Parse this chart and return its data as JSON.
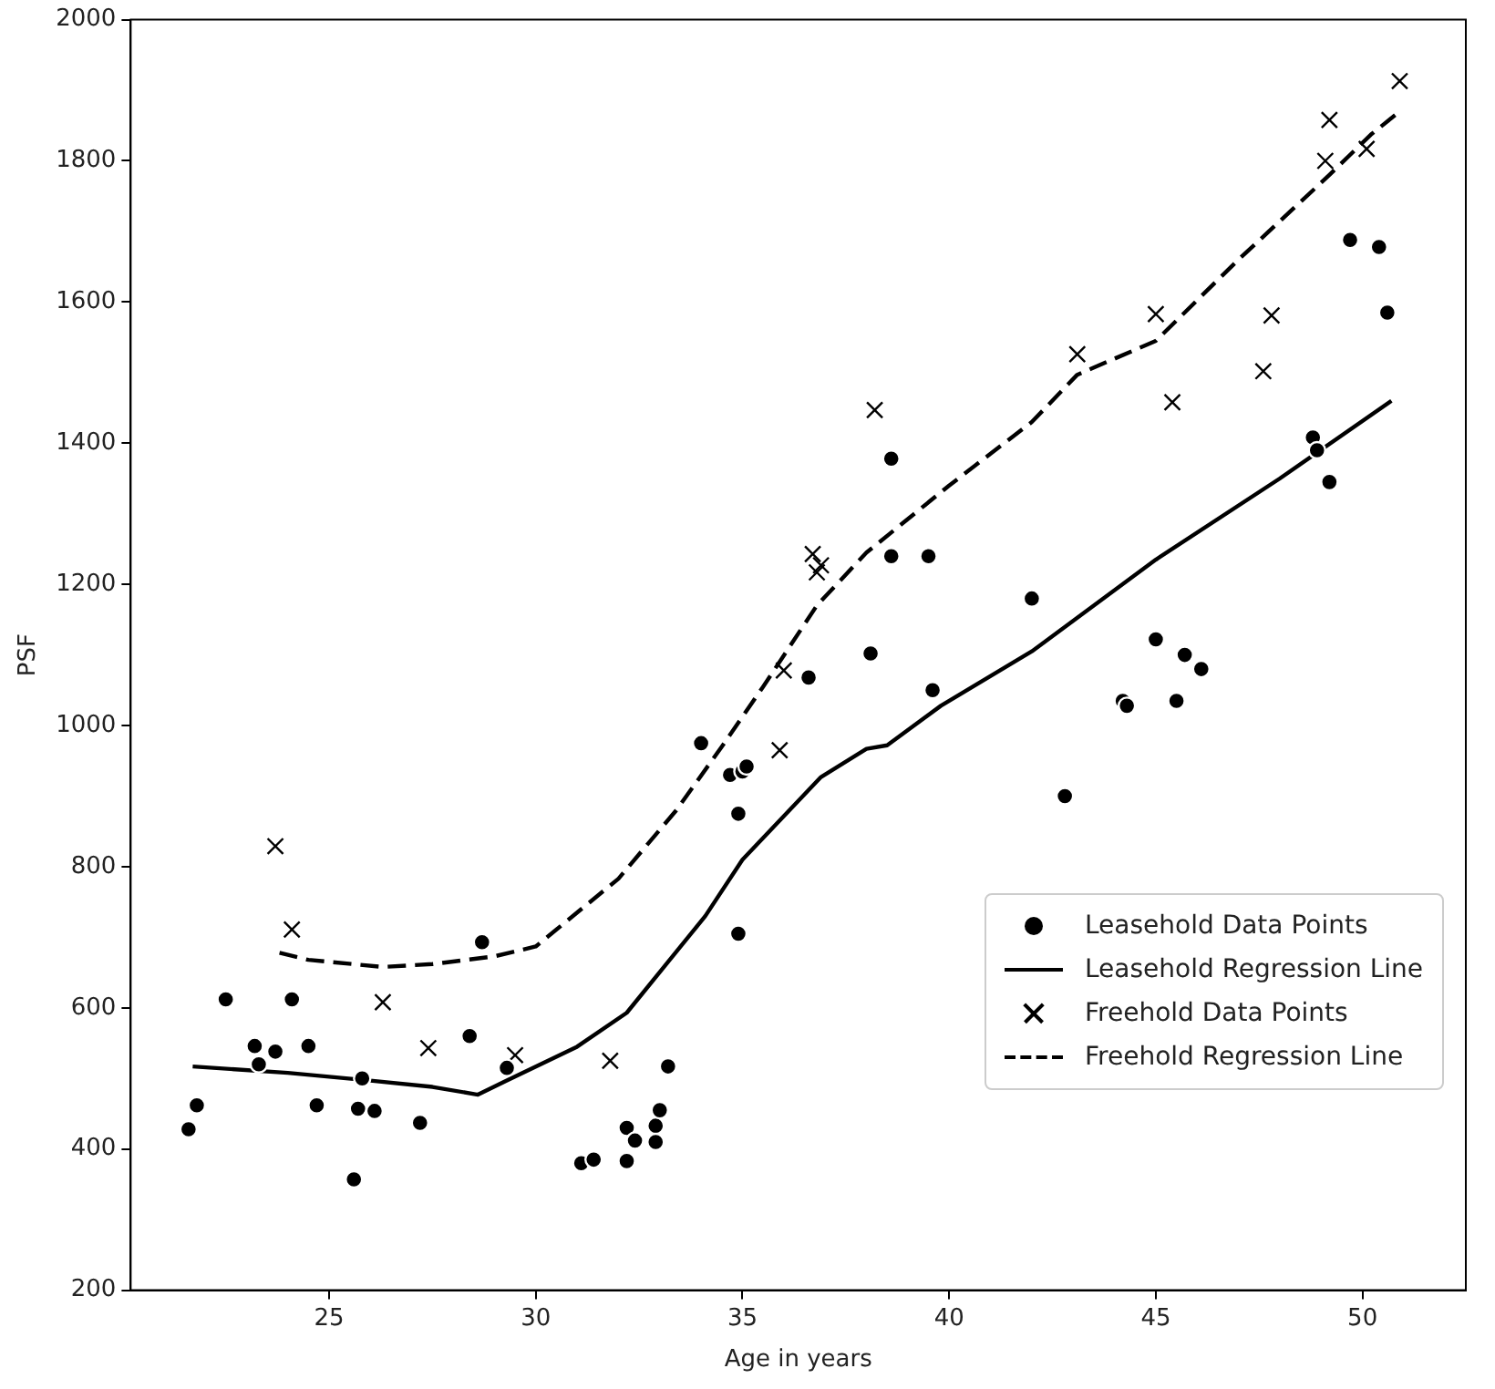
{
  "chart_data": {
    "type": "scatter",
    "xlabel": "Age in years",
    "ylabel": "PSF",
    "xlim": [
      20.2,
      52.5
    ],
    "xticks": [
      25,
      30,
      35,
      40,
      45,
      50
    ],
    "ylim": [
      200,
      2000
    ],
    "yticks": [
      200,
      400,
      600,
      800,
      1000,
      1200,
      1400,
      1600,
      1800,
      2000
    ],
    "grid": false,
    "legend": "lower right",
    "series": [
      {
        "name": "Leasehold Data Points",
        "marker": "circle",
        "color": "#000000",
        "x": [
          21.6,
          21.8,
          22.5,
          23.2,
          23.3,
          23.7,
          24.1,
          24.5,
          24.7,
          25.8,
          25.7,
          26.1,
          25.6,
          27.2,
          28.4,
          28.7,
          29.3,
          31.1,
          31.4,
          32.2,
          32.2,
          32.4,
          32.9,
          32.9,
          33.0,
          33.2,
          34.0,
          34.7,
          34.9,
          35.0,
          35.1,
          34.9,
          36.6,
          38.6,
          38.6,
          38.1,
          39.5,
          39.6,
          42.0,
          42.8,
          44.2,
          44.3,
          45.0,
          45.5,
          45.7,
          46.1,
          48.8,
          48.9,
          49.2,
          49.7,
          50.4,
          50.6
        ],
        "values": [
          428,
          462,
          612,
          546,
          520,
          538,
          612,
          546,
          462,
          500,
          457,
          454,
          357,
          437,
          560,
          693,
          515,
          380,
          385,
          430,
          383,
          412,
          433,
          410,
          455,
          517,
          975,
          930,
          875,
          935,
          942,
          705,
          1068,
          1378,
          1240,
          1102,
          1240,
          1050,
          1180,
          900,
          1035,
          1028,
          1122,
          1035,
          1100,
          1080,
          1408,
          1390,
          1345,
          1688,
          1678,
          1585
        ]
      },
      {
        "name": "Leasehold Regression Line",
        "type": "line",
        "line_style": "solid",
        "color": "#000000",
        "x": [
          21.7,
          24,
          26,
          27.5,
          28.6,
          29.3,
          31,
          32.2,
          33.2,
          34.1,
          35,
          36.9,
          38,
          38.5,
          39.8,
          42,
          45,
          48,
          50.7
        ],
        "values": [
          517,
          508,
          497,
          488,
          477,
          497,
          545,
          593,
          665,
          730,
          810,
          927,
          967,
          972,
          1028,
          1105,
          1235,
          1350,
          1460
        ]
      },
      {
        "name": "Freehold Data Points",
        "marker": "cross",
        "color": "#000000",
        "x": [
          23.7,
          24.1,
          26.3,
          27.4,
          29.5,
          31.8,
          36.0,
          35.9,
          36.7,
          36.8,
          36.9,
          38.2,
          43.1,
          45.0,
          45.4,
          47.6,
          47.8,
          49.1,
          49.2,
          50.1,
          50.9
        ],
        "values": [
          829,
          711,
          608,
          543,
          533,
          525,
          1078,
          965,
          1243,
          1217,
          1227,
          1447,
          1526,
          1583,
          1458,
          1502,
          1581,
          1800,
          1858,
          1817,
          1913
        ]
      },
      {
        "name": "Freehold Regression Line",
        "type": "line",
        "line_style": "dashed",
        "color": "#000000",
        "x": [
          23.8,
          24.5,
          26.3,
          27.5,
          29,
          30,
          32,
          33.4,
          34.5,
          35.5,
          36.8,
          38,
          40,
          42,
          43.1,
          45,
          47,
          49.2,
          50.2,
          50.9
        ],
        "values": [
          678,
          668,
          658,
          662,
          673,
          687,
          783,
          880,
          970,
          1055,
          1170,
          1245,
          1340,
          1430,
          1497,
          1545,
          1660,
          1780,
          1837,
          1870
        ]
      }
    ]
  }
}
